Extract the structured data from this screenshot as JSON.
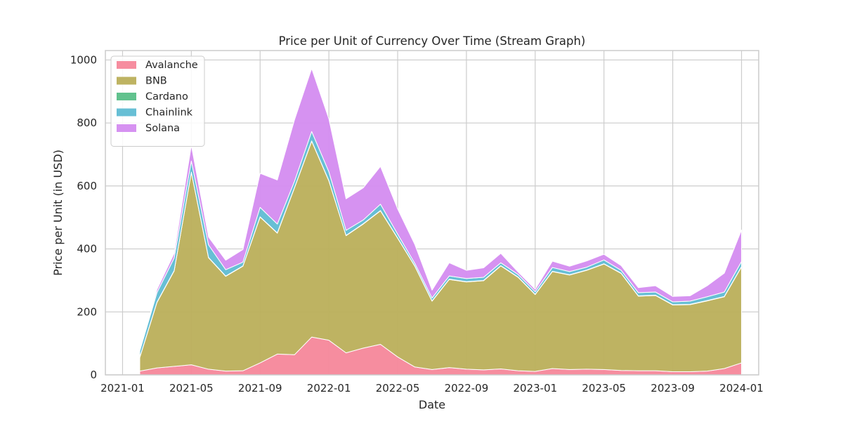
{
  "chart_data": {
    "type": "area",
    "subtype": "stacked",
    "title": "Price per Unit of Currency Over Time (Stream Graph)",
    "xlabel": "Date",
    "ylabel": "Price per Unit (in USD)",
    "x_ticks": [
      "2021-01",
      "2021-05",
      "2021-09",
      "2022-01",
      "2022-05",
      "2022-09",
      "2023-01",
      "2023-05",
      "2023-09",
      "2024-01"
    ],
    "y_ticks": [
      0,
      200,
      400,
      600,
      800,
      1000
    ],
    "xlim": [
      "2020-12-01",
      "2024-02-01"
    ],
    "ylim": [
      0,
      1030
    ],
    "grid": true,
    "legend_position": "top-left",
    "x": [
      "2021-02",
      "2021-03",
      "2021-04",
      "2021-05",
      "2021-06",
      "2021-07",
      "2021-08",
      "2021-09",
      "2021-10",
      "2021-11",
      "2021-12",
      "2022-01",
      "2022-02",
      "2022-03",
      "2022-04",
      "2022-05",
      "2022-06",
      "2022-07",
      "2022-08",
      "2022-09",
      "2022-10",
      "2022-11",
      "2022-12",
      "2023-01",
      "2023-02",
      "2023-03",
      "2023-04",
      "2023-05",
      "2023-06",
      "2023-07",
      "2023-08",
      "2023-09",
      "2023-10",
      "2023-11",
      "2023-12",
      "2024-01"
    ],
    "series": [
      {
        "name": "Avalanche",
        "color": "#f5879a",
        "values": [
          12,
          22,
          27,
          32,
          18,
          12,
          13,
          38,
          66,
          64,
          120,
          110,
          70,
          85,
          97,
          57,
          25,
          17,
          23,
          18,
          16,
          19,
          13,
          11,
          20,
          17,
          18,
          17,
          14,
          13,
          13,
          10,
          10,
          12,
          20,
          38
        ]
      },
      {
        "name": "BNB",
        "color": "#bbaf5a",
        "values": [
          43,
          208,
          303,
          611,
          354,
          301,
          332,
          463,
          384,
          530,
          622,
          506,
          372,
          394,
          424,
          377,
          320,
          217,
          280,
          277,
          283,
          327,
          297,
          244,
          308,
          300,
          314,
          335,
          308,
          237,
          239,
          212,
          213,
          223,
          228,
          305
        ]
      },
      {
        "name": "Cardano",
        "color": "#58bf88",
        "values": [
          1,
          1,
          1,
          1,
          1,
          1,
          1,
          1,
          1,
          1,
          1,
          1,
          1,
          1,
          1,
          1,
          1,
          1,
          1,
          1,
          1,
          1,
          1,
          1,
          1,
          1,
          1,
          1,
          1,
          1,
          1,
          1,
          1,
          1,
          1,
          1
        ]
      },
      {
        "name": "Chainlink",
        "color": "#5fbcd3",
        "values": [
          20,
          30,
          40,
          35,
          40,
          20,
          12,
          30,
          28,
          20,
          30,
          28,
          16,
          12,
          20,
          12,
          8,
          9,
          10,
          10,
          10,
          9,
          8,
          8,
          12,
          10,
          9,
          12,
          9,
          10,
          10,
          9,
          10,
          12,
          14,
          16
        ]
      },
      {
        "name": "Solana",
        "color": "#d48cf0",
        "values": [
          0,
          10,
          15,
          50,
          25,
          30,
          40,
          108,
          140,
          195,
          200,
          168,
          100,
          102,
          120,
          80,
          60,
          25,
          42,
          26,
          30,
          30,
          8,
          8,
          20,
          17,
          20,
          18,
          15,
          16,
          20,
          17,
          17,
          35,
          60,
          100
        ]
      }
    ]
  }
}
